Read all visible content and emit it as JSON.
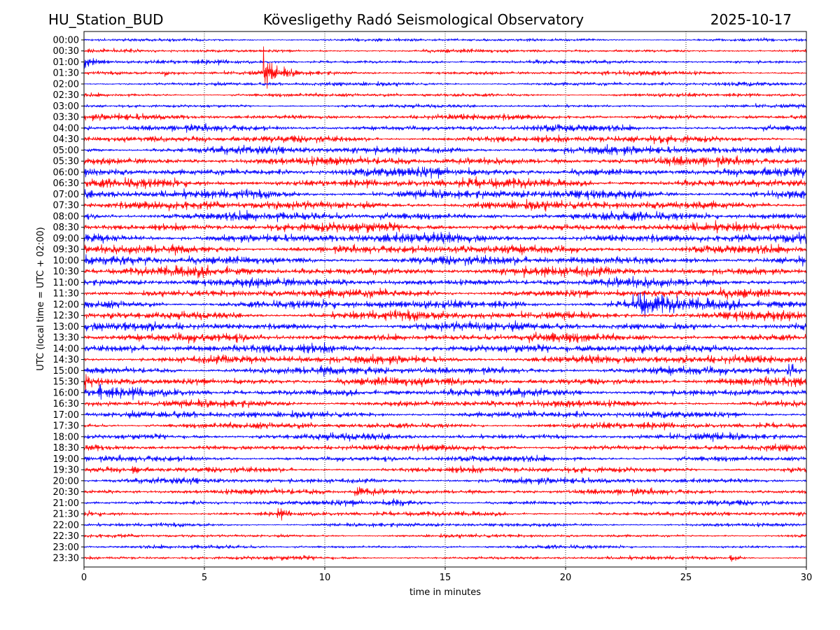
{
  "header": {
    "station": "HU_Station_BUD",
    "observatory": "Kövesligethy Radó Seismological Observatory",
    "date": "2025-10-17"
  },
  "chart_data": {
    "type": "line",
    "title": "Kövesligethy Radó Seismological Observatory",
    "xlabel": "time in minutes",
    "ylabel": "UTC (local time = UTC + 02:00)",
    "xlim": [
      0,
      30
    ],
    "xticks": [
      "0",
      "5",
      "10",
      "15",
      "20",
      "25",
      "30"
    ],
    "grid": "vertical dotted at x ticks",
    "series_colors": [
      "#0000ff",
      "#ff0000"
    ],
    "rows": [
      "00:00",
      "00:30",
      "01:00",
      "01:30",
      "02:00",
      "02:30",
      "03:00",
      "03:30",
      "04:00",
      "04:30",
      "05:00",
      "05:30",
      "06:00",
      "06:30",
      "07:00",
      "07:30",
      "08:00",
      "08:30",
      "09:00",
      "09:30",
      "10:00",
      "10:30",
      "11:00",
      "11:30",
      "12:00",
      "12:30",
      "13:00",
      "13:30",
      "14:00",
      "14:30",
      "15:00",
      "15:30",
      "16:00",
      "16:30",
      "17:00",
      "17:30",
      "18:00",
      "18:30",
      "19:00",
      "19:30",
      "20:00",
      "20:30",
      "21:00",
      "21:30",
      "22:00",
      "22:30",
      "23:00",
      "23:30"
    ],
    "noise_amplitude": [
      1.6,
      1.8,
      2,
      2.2,
      2,
      2,
      1.8,
      2.8,
      3.2,
      3.5,
      4,
      4.2,
      4.5,
      4.5,
      4.5,
      4.5,
      4.2,
      4.2,
      4.8,
      4.5,
      4.5,
      4.5,
      4.2,
      4.2,
      4.5,
      4.5,
      4.2,
      4.2,
      4.2,
      4.2,
      4,
      4.2,
      4,
      3.5,
      3.5,
      3.2,
      3.2,
      3.2,
      3,
      3,
      2.8,
      2.8,
      2.6,
      2.4,
      2,
      1.8,
      1.8,
      1.8
    ],
    "events": [
      {
        "row": 2,
        "start": 0,
        "end": 1.6,
        "amplitude": 6
      },
      {
        "row": 3,
        "start": 3.2,
        "end": 4.2,
        "amplitude": 4
      },
      {
        "row": 3,
        "start": 7.45,
        "end": 9,
        "amplitude": 26
      },
      {
        "row": 24,
        "start": 22.8,
        "end": 27.5,
        "amplitude": 11
      },
      {
        "row": 30,
        "start": 29.2,
        "end": 30,
        "amplitude": 10
      },
      {
        "row": 31,
        "start": 0,
        "end": 1,
        "amplitude": 8
      },
      {
        "row": 32,
        "start": 0.6,
        "end": 1.2,
        "amplitude": 12
      },
      {
        "row": 39,
        "start": 2,
        "end": 2.7,
        "amplitude": 6
      },
      {
        "row": 41,
        "start": 11.2,
        "end": 14,
        "amplitude": 5
      },
      {
        "row": 42,
        "start": 12.8,
        "end": 13.8,
        "amplitude": 5
      },
      {
        "row": 43,
        "start": 8,
        "end": 8.8,
        "amplitude": 5
      },
      {
        "row": 47,
        "start": 26.8,
        "end": 27.8,
        "amplitude": 4
      }
    ]
  }
}
